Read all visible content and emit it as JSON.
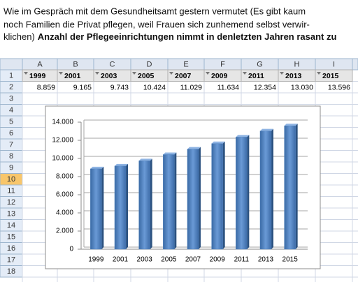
{
  "caption": {
    "lines": [
      "Wie im Gespräch mit dem Gesundheitsamt gestern vermutet (Es gibt kaum",
      "noch Familien die Privat pflegen, weil Frauen sich zunhemend selbst verwir-",
      "klichen)"
    ],
    "bold": "Anzahl der Pflegeeinrichtungen nimmt in denletzten Jahren rasant zu"
  },
  "sheet": {
    "columns": [
      "A",
      "B",
      "C",
      "D",
      "E",
      "F",
      "G",
      "H",
      "I"
    ],
    "rows": [
      1,
      2,
      3,
      4,
      5,
      6,
      7,
      8,
      9,
      10,
      11,
      12,
      13,
      14,
      15,
      16,
      17,
      18
    ],
    "cells": [
      [
        "1999",
        "2001",
        "2003",
        "2005",
        "2007",
        "2009",
        "2011",
        "2013",
        "2015"
      ],
      [
        "8.859",
        "9.165",
        "9.743",
        "10.424",
        "11.029",
        "11.634",
        "12.354",
        "13.030",
        "13.596"
      ]
    ]
  },
  "chart_data": {
    "type": "bar",
    "categories": [
      "1999",
      "2001",
      "2003",
      "2005",
      "2007",
      "2009",
      "2011",
      "2013",
      "2015"
    ],
    "values": [
      8859,
      9165,
      9743,
      10424,
      11029,
      11634,
      12354,
      13030,
      13596
    ],
    "color": "#4f81bd",
    "ylim": [
      0,
      14000
    ],
    "yticks": [
      0,
      {
        "value": 2000,
        "label": "2.000"
      },
      {
        "value": 4000,
        "label": "4.000"
      },
      {
        "value": 6000,
        "label": "6.000"
      },
      {
        "value": 8000,
        "label": "8.000"
      },
      {
        "value": 10000,
        "label": "10.000"
      },
      {
        "value": 12000,
        "label": "12.000"
      },
      {
        "value": 14000,
        "label": "14.000"
      }
    ],
    "grid": true
  }
}
